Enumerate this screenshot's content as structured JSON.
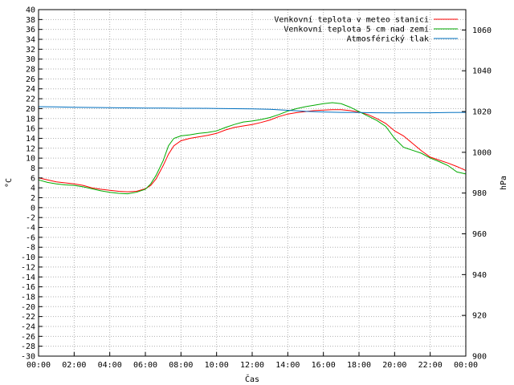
{
  "chart_data": {
    "type": "line",
    "title": "",
    "xlabel": "Čas",
    "ylabel": "°C",
    "y2label": "hPa",
    "xlim": [
      0,
      24
    ],
    "x_tick_labels": [
      "00:00",
      "02:00",
      "04:00",
      "06:00",
      "08:00",
      "10:00",
      "12:00",
      "14:00",
      "16:00",
      "18:00",
      "20:00",
      "22:00",
      "00:00"
    ],
    "ylim": [
      -30,
      40
    ],
    "y_ticks": [
      40,
      38,
      36,
      34,
      32,
      30,
      28,
      26,
      24,
      22,
      20,
      18,
      16,
      14,
      12,
      10,
      8,
      6,
      4,
      2,
      0,
      -2,
      -4,
      -6,
      -8,
      -10,
      -12,
      -14,
      -16,
      -18,
      -20,
      -22,
      -24,
      -26,
      -28,
      -30
    ],
    "y2lim": [
      900,
      1070
    ],
    "y2_ticks": [
      1060,
      1040,
      1020,
      1000,
      980,
      960,
      940,
      920,
      900
    ],
    "grid": true,
    "legend_position": "top-right",
    "series": [
      {
        "name": "Venkovní teplota v meteo stanici",
        "color": "#ff0000",
        "axis": "left",
        "x": [
          0,
          0.5,
          1,
          1.5,
          2,
          2.5,
          3,
          3.5,
          4,
          4.5,
          5,
          5.5,
          6,
          6.3,
          6.6,
          7,
          7.3,
          7.6,
          8,
          8.5,
          9,
          9.5,
          10,
          10.5,
          11,
          11.5,
          12,
          12.5,
          13,
          13.5,
          14,
          14.5,
          15,
          15.5,
          16,
          16.5,
          17,
          17.5,
          18,
          18.5,
          19,
          19.5,
          20,
          20.5,
          21,
          21.5,
          22,
          22.5,
          23,
          23.5,
          24
        ],
        "y": [
          6.0,
          5.6,
          5.2,
          5.0,
          4.8,
          4.5,
          4.0,
          3.7,
          3.5,
          3.3,
          3.2,
          3.3,
          3.8,
          4.5,
          5.8,
          8.5,
          10.8,
          12.5,
          13.5,
          14.0,
          14.3,
          14.6,
          15.0,
          15.7,
          16.2,
          16.5,
          16.8,
          17.2,
          17.7,
          18.4,
          18.9,
          19.2,
          19.4,
          19.6,
          19.7,
          19.8,
          19.8,
          19.6,
          19.3,
          18.8,
          18.0,
          17.0,
          15.5,
          14.5,
          13.0,
          11.5,
          10.2,
          9.6,
          9.0,
          8.3,
          7.5
        ]
      },
      {
        "name": "Venkovní teplota 5 cm nad zemí",
        "color": "#00aa00",
        "axis": "left",
        "x": [
          0,
          0.5,
          1,
          1.5,
          2,
          2.5,
          3,
          3.5,
          4,
          4.5,
          5,
          5.5,
          6,
          6.3,
          6.6,
          7,
          7.3,
          7.6,
          8,
          8.5,
          9,
          9.5,
          10,
          10.5,
          11,
          11.5,
          12,
          12.5,
          13,
          13.5,
          14,
          14.5,
          15,
          15.5,
          16,
          16.5,
          17,
          17.5,
          18,
          18.5,
          19,
          19.5,
          20,
          20.5,
          21,
          21.5,
          22,
          22.5,
          23,
          23.5,
          24
        ],
        "y": [
          5.6,
          5.1,
          4.8,
          4.6,
          4.5,
          4.2,
          3.8,
          3.4,
          3.1,
          2.9,
          2.8,
          3.1,
          3.7,
          4.8,
          6.5,
          9.5,
          12.5,
          14.0,
          14.5,
          14.7,
          15.0,
          15.2,
          15.5,
          16.2,
          16.8,
          17.3,
          17.5,
          17.8,
          18.2,
          18.8,
          19.5,
          20.0,
          20.4,
          20.7,
          21.0,
          21.2,
          21.0,
          20.3,
          19.4,
          18.5,
          17.6,
          16.4,
          14.0,
          12.2,
          11.6,
          11.0,
          10.0,
          9.3,
          8.5,
          7.2,
          6.8
        ]
      },
      {
        "name": "Atmosférický tlak",
        "color": "#0070c0",
        "axis": "right",
        "x": [
          0,
          1,
          2,
          3,
          4,
          5,
          6,
          7,
          8,
          9,
          10,
          11,
          12,
          13,
          14,
          15,
          16,
          17,
          18,
          19,
          20,
          21,
          22,
          23,
          24
        ],
        "y": [
          1022.4,
          1022.3,
          1022.1,
          1022.0,
          1021.9,
          1021.8,
          1021.7,
          1021.7,
          1021.6,
          1021.6,
          1021.5,
          1021.4,
          1021.3,
          1021.1,
          1020.6,
          1020.1,
          1019.8,
          1019.6,
          1019.5,
          1019.4,
          1019.3,
          1019.4,
          1019.4,
          1019.5,
          1019.6
        ]
      }
    ]
  }
}
